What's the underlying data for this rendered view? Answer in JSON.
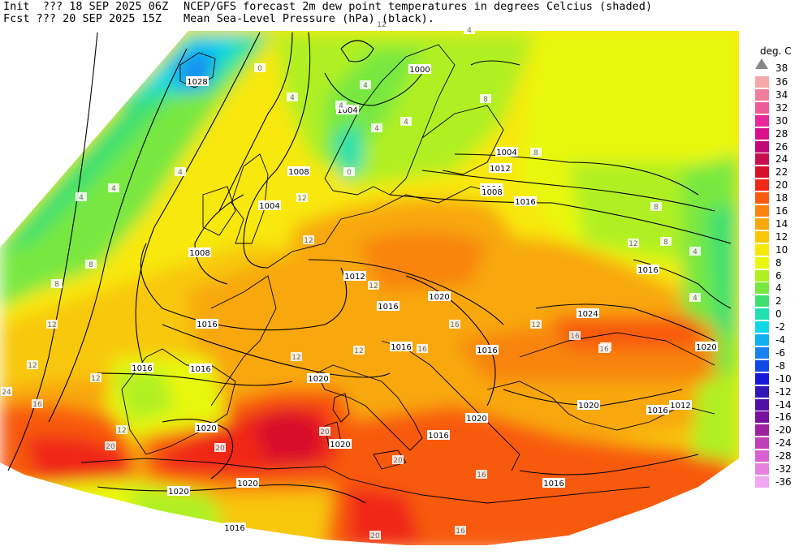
{
  "header": {
    "init_line": "Init  ??? 18 SEP 2025 06Z",
    "fcst_line": "Fcst ??? 20 SEP 2025 15Z",
    "title_line1": "NCEP/GFS forecast 2m dew point temperatures in degrees Celcius (shaded)",
    "title_line2": "Mean Sea-Level Pressure (hPa) (black)."
  },
  "legend": {
    "unit": "deg. C",
    "top_label": "38",
    "entries": [
      {
        "label": "36",
        "color": "#f4a8a8"
      },
      {
        "label": "34",
        "color": "#f07e9a"
      },
      {
        "label": "32",
        "color": "#ee5c98"
      },
      {
        "label": "30",
        "color": "#e8289a"
      },
      {
        "label": "28",
        "color": "#d8108c"
      },
      {
        "label": "26",
        "color": "#c00878"
      },
      {
        "label": "24",
        "color": "#c80e4c"
      },
      {
        "label": "22",
        "color": "#d8102a"
      },
      {
        "label": "20",
        "color": "#f02818"
      },
      {
        "label": "18",
        "color": "#f85a10"
      },
      {
        "label": "16",
        "color": "#f8840c"
      },
      {
        "label": "14",
        "color": "#f8a80a"
      },
      {
        "label": "12",
        "color": "#f8c808"
      },
      {
        "label": "10",
        "color": "#f8e808"
      },
      {
        "label": "8",
        "color": "#e8f808"
      },
      {
        "label": "6",
        "color": "#b0f020"
      },
      {
        "label": "4",
        "color": "#78e840"
      },
      {
        "label": "2",
        "color": "#40e070"
      },
      {
        "label": "0",
        "color": "#20e0b0"
      },
      {
        "label": "-2",
        "color": "#10d8e8"
      },
      {
        "label": "-4",
        "color": "#10b0f0"
      },
      {
        "label": "-6",
        "color": "#1880f0"
      },
      {
        "label": "-8",
        "color": "#1048e8"
      },
      {
        "label": "-10",
        "color": "#1818d8"
      },
      {
        "label": "-12",
        "color": "#3018b8"
      },
      {
        "label": "-14",
        "color": "#5010a8"
      },
      {
        "label": "-16",
        "color": "#7810a0"
      },
      {
        "label": "-20",
        "color": "#a020a0"
      },
      {
        "label": "-24",
        "color": "#c040b8"
      },
      {
        "label": "-28",
        "color": "#d860d0"
      },
      {
        "label": "-32",
        "color": "#e880e0"
      },
      {
        "label": "-36",
        "color": "#f0a8f0"
      }
    ]
  },
  "map": {
    "isobar_labels": [
      "1028",
      "1004",
      "1000",
      "1004",
      "1008",
      "1004",
      "1008",
      "1012",
      "1016",
      "1004",
      "1008",
      "1012",
      "1016",
      "1016",
      "1016",
      "1020",
      "1020",
      "1016",
      "1016",
      "1024",
      "1020",
      "1020",
      "1020",
      "1016",
      "1012",
      "1020",
      "1020",
      "1020",
      "1020",
      "1016",
      "1016",
      "1016",
      "1016",
      "1016"
    ],
    "dewpoint_labels": [
      "0",
      "4",
      "4",
      "0",
      "4",
      "4",
      "4",
      "8",
      "8",
      "4",
      "8",
      "12",
      "12",
      "12",
      "12",
      "12",
      "12",
      "12",
      "12",
      "12",
      "16",
      "16",
      "16",
      "16",
      "16",
      "20",
      "20",
      "20",
      "20",
      "20",
      "8",
      "4",
      "4",
      "24",
      "16",
      "12",
      "8",
      "8",
      "4",
      "4",
      "4",
      "12",
      "12",
      "16",
      "16"
    ]
  }
}
